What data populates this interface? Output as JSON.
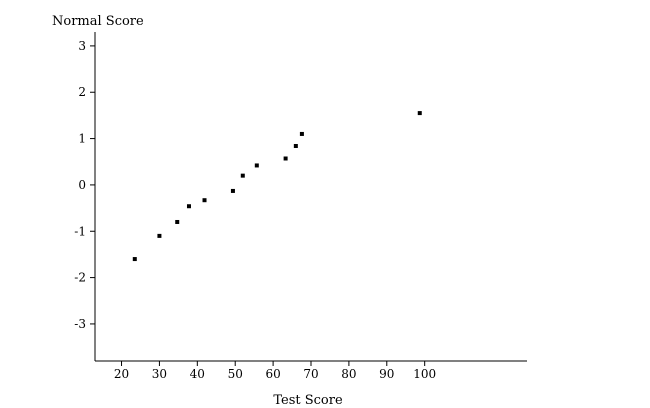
{
  "chart_data": {
    "type": "scatter",
    "title": "",
    "xlabel": "Test Score",
    "ylabel": "Normal Score",
    "xlim": [
      13,
      127
    ],
    "ylim": [
      -3.8,
      3.3
    ],
    "x_ticks": [
      20,
      30,
      40,
      50,
      60,
      70,
      80,
      90,
      100
    ],
    "y_ticks": [
      3,
      2,
      1,
      0,
      -1,
      -2,
      -3
    ],
    "grid": false,
    "legend": "none",
    "point_color": "#000000",
    "points": [
      {
        "x": 23.5,
        "y": -1.6
      },
      {
        "x": 30,
        "y": -1.1
      },
      {
        "x": 34.7,
        "y": -0.8
      },
      {
        "x": 37.8,
        "y": -0.46
      },
      {
        "x": 41.9,
        "y": -0.33
      },
      {
        "x": 49.4,
        "y": -0.13
      },
      {
        "x": 52,
        "y": 0.2
      },
      {
        "x": 55.7,
        "y": 0.42
      },
      {
        "x": 63.3,
        "y": 0.57
      },
      {
        "x": 66,
        "y": 0.84
      },
      {
        "x": 67.6,
        "y": 1.1
      },
      {
        "x": 98.7,
        "y": 1.55
      }
    ]
  }
}
